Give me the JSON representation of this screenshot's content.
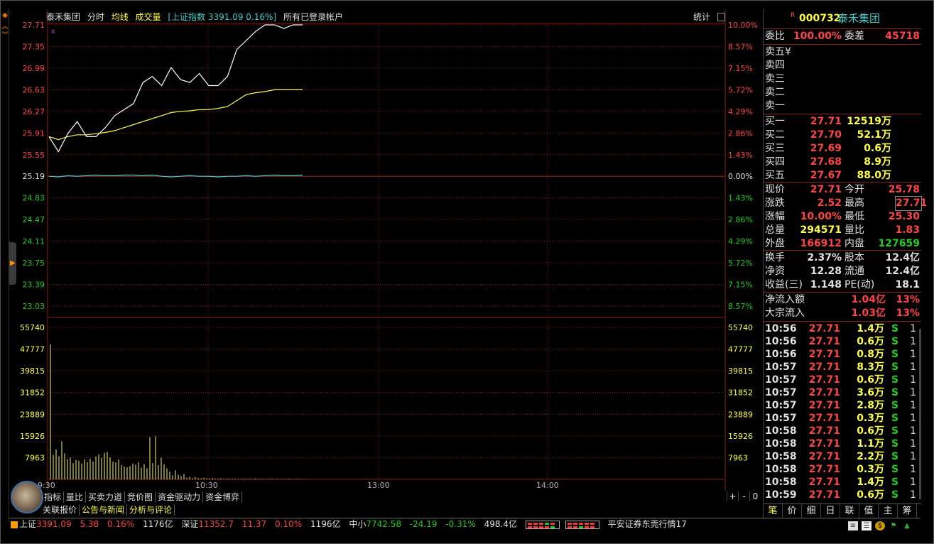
{
  "header": {
    "stock_name": "泰禾集团",
    "tab_intraday": "分时",
    "label_avg": "均线",
    "label_volume": "成交量",
    "index_info": "[上证指数 3391.09 0.16%]",
    "accounts": "所有已登录帐户",
    "stats": "统计"
  },
  "price_axis_left": [
    "27.71",
    "27.35",
    "26.99",
    "26.63",
    "26.27",
    "25.91",
    "25.55",
    "25.19",
    "24.83",
    "24.47",
    "24.11",
    "23.75",
    "23.39",
    "23.03"
  ],
  "pct_axis_right": [
    "10.00%",
    "8.57%",
    "7.15%",
    "5.72%",
    "4.29%",
    "2.86%",
    "1.43%",
    "0.00%",
    "1.43%",
    "2.86%",
    "4.29%",
    "5.72%",
    "7.15%",
    "8.57%"
  ],
  "volume_axis": [
    "55740",
    "47777",
    "39815",
    "31852",
    "23889",
    "15926",
    "7963"
  ],
  "time_axis": [
    "9:30",
    "10:30",
    "13:00",
    "14:00"
  ],
  "marker": "x",
  "chart_data": {
    "type": "line",
    "prev_close": 25.19,
    "ylim": [
      23.03,
      27.71
    ],
    "price": [
      25.85,
      25.6,
      25.9,
      26.1,
      25.85,
      25.85,
      26.0,
      26.2,
      26.3,
      26.4,
      26.75,
      26.85,
      26.7,
      27.0,
      26.8,
      26.75,
      26.9,
      26.7,
      26.7,
      26.85,
      27.3,
      27.45,
      27.6,
      27.71,
      27.71,
      27.65,
      27.71,
      27.71
    ],
    "avg": [
      25.85,
      25.8,
      25.85,
      25.88,
      25.88,
      25.9,
      25.92,
      25.95,
      26.0,
      26.05,
      26.1,
      26.15,
      26.2,
      26.25,
      26.27,
      26.28,
      26.3,
      26.3,
      26.32,
      26.35,
      26.45,
      26.55,
      26.58,
      26.6,
      26.63,
      26.63,
      26.63,
      26.63
    ],
    "index_line": [
      25.19,
      25.18,
      25.2,
      25.19,
      25.2,
      25.21,
      25.2,
      25.2,
      25.21,
      25.21,
      25.2,
      25.21,
      25.19,
      25.18,
      25.19,
      25.2,
      25.19,
      25.19,
      25.18,
      25.19,
      25.19,
      25.2,
      25.19,
      25.2,
      25.21,
      25.2,
      25.2,
      25.21
    ],
    "volume_ylim": [
      0,
      55740
    ],
    "volumes": [
      49500,
      9000,
      11000,
      8500,
      14000,
      9500,
      7500,
      8000,
      6000,
      7200,
      6800,
      5800,
      7300,
      6300,
      7600,
      6600,
      8400,
      9200,
      7900,
      9700,
      10000,
      8100,
      6500,
      6200,
      7300,
      5200,
      4700,
      4400,
      4900,
      5800,
      5400,
      6300,
      4300,
      5600,
      4100,
      15500,
      6000,
      15800,
      5200,
      8000,
      5500,
      4000,
      2900,
      1500,
      3300,
      1700,
      1200,
      1900,
      600,
      900,
      400,
      900,
      500,
      350,
      600,
      400,
      300,
      500,
      300,
      250,
      400,
      200,
      300,
      250,
      200,
      300,
      200,
      200,
      300,
      200,
      250,
      200,
      300,
      200,
      200,
      200,
      150,
      200,
      200,
      150,
      200,
      150,
      200,
      150,
      200,
      150,
      150,
      200,
      150,
      100
    ]
  },
  "indicator_tabs": [
    "指标",
    "量比",
    "买卖力道",
    "竞价图",
    "资金驱动力",
    "资金博弈"
  ],
  "zoom_controls": [
    "+",
    "-",
    "0"
  ],
  "news_tabs": [
    "关联报价",
    "公告与新闻",
    "分析与评论"
  ],
  "quote_panel": {
    "badge": "R",
    "code": "000732",
    "name": "泰禾集团",
    "weibi_label": "委比",
    "weibi_value": "100.00%",
    "weicha_label": "委差",
    "weicha_value": "45718",
    "sell": [
      {
        "label": "卖五",
        "extra": "¥"
      },
      {
        "label": "卖四",
        "extra": ""
      },
      {
        "label": "卖三",
        "extra": ""
      },
      {
        "label": "卖二",
        "extra": ""
      },
      {
        "label": "卖一",
        "extra": ""
      }
    ],
    "buy": [
      {
        "label": "买一",
        "price": "27.71",
        "vol": "12519万"
      },
      {
        "label": "买二",
        "price": "27.70",
        "vol": "52.1万"
      },
      {
        "label": "买三",
        "price": "27.69",
        "vol": "0.6万"
      },
      {
        "label": "买四",
        "price": "27.68",
        "vol": "8.9万"
      },
      {
        "label": "买五",
        "price": "27.67",
        "vol": "88.0万"
      }
    ],
    "stats1": [
      {
        "l1": "现价",
        "v1": "27.71",
        "c1": "red",
        "l2": "今开",
        "v2": "25.78",
        "c2": "red"
      },
      {
        "l1": "涨跌",
        "v1": "2.52",
        "c1": "red",
        "l2": "最高",
        "v2": "27.71",
        "c2": "red"
      },
      {
        "l1": "涨幅",
        "v1": "10.00%",
        "c1": "red",
        "l2": "最低",
        "v2": "25.30",
        "c2": "red"
      },
      {
        "l1": "总量",
        "v1": "294571",
        "c1": "yellow",
        "l2": "量比",
        "v2": "1.83",
        "c2": "red"
      },
      {
        "l1": "外盘",
        "v1": "166912",
        "c1": "red",
        "l2": "内盘",
        "v2": "127659",
        "c2": "green"
      }
    ],
    "stats2": [
      {
        "l1": "换手",
        "v1": "2.37%",
        "c1": "white",
        "l2": "股本",
        "v2": "12.4亿",
        "c2": "white"
      },
      {
        "l1": "净资",
        "v1": "12.28",
        "c1": "white",
        "l2": "流通",
        "v2": "12.4亿",
        "c2": "white"
      },
      {
        "l1": "收益(三)",
        "v1": "1.148",
        "c1": "white",
        "l2": "PE(动)",
        "v2": "18.1",
        "c2": "white"
      }
    ],
    "flow": [
      {
        "l": "净流入额",
        "v": "1.04亿",
        "p": "13%"
      },
      {
        "l": "大宗流入",
        "v": "1.03亿",
        "p": "13%"
      }
    ],
    "ticks": [
      {
        "t": "10:56",
        "p": "27.71",
        "v": "1.4万",
        "s": "S",
        "n": "1"
      },
      {
        "t": "10:56",
        "p": "27.71",
        "v": "0.6万",
        "s": "S",
        "n": "1"
      },
      {
        "t": "10:56",
        "p": "27.71",
        "v": "0.8万",
        "s": "S",
        "n": "1"
      },
      {
        "t": "10:57",
        "p": "27.71",
        "v": "8.3万",
        "s": "S",
        "n": "1"
      },
      {
        "t": "10:57",
        "p": "27.71",
        "v": "0.6万",
        "s": "S",
        "n": "1"
      },
      {
        "t": "10:57",
        "p": "27.71",
        "v": "3.6万",
        "s": "S",
        "n": "1"
      },
      {
        "t": "10:57",
        "p": "27.71",
        "v": "2.8万",
        "s": "S",
        "n": "1"
      },
      {
        "t": "10:57",
        "p": "27.71",
        "v": "0.3万",
        "s": "S",
        "n": "1"
      },
      {
        "t": "10:58",
        "p": "27.71",
        "v": "0.6万",
        "s": "S",
        "n": "1"
      },
      {
        "t": "10:58",
        "p": "27.71",
        "v": "1.1万",
        "s": "S",
        "n": "1"
      },
      {
        "t": "10:58",
        "p": "27.71",
        "v": "2.2万",
        "s": "S",
        "n": "1"
      },
      {
        "t": "10:58",
        "p": "27.71",
        "v": "0.3万",
        "s": "S",
        "n": "1"
      },
      {
        "t": "10:58",
        "p": "27.71",
        "v": "1.4万",
        "s": "S",
        "n": "1"
      },
      {
        "t": "10:59",
        "p": "27.71",
        "v": "0.6万",
        "s": "S",
        "n": "1"
      }
    ],
    "tabs": [
      "笔",
      "价",
      "细",
      "日",
      "联",
      "值",
      "主",
      "筹"
    ]
  },
  "status_bar": {
    "sh_label": "上证",
    "sh_value": "3391.09",
    "sh_change": "5.38",
    "sh_pct": "0.16%",
    "sh_amount": "1176亿",
    "sz_label": "深证",
    "sz_value": "11352.7",
    "sz_change": "11.37",
    "sz_pct": "0.10%",
    "sz_amount": "1196亿",
    "zx_label": "中小",
    "zx_value": "7742.58",
    "zx_change": "-24.19",
    "zx_pct": "-0.31%",
    "zx_amount": "498.4亿",
    "broker": "平安证券东莞行情17"
  },
  "colors": {
    "up": "#ff4444",
    "down": "#22cc22",
    "price_line": "#ffffff",
    "avg_line": "#ffff44",
    "index_line": "#44cccc",
    "grid": "#8a1a1a",
    "volume_bar": "#cccc66"
  }
}
